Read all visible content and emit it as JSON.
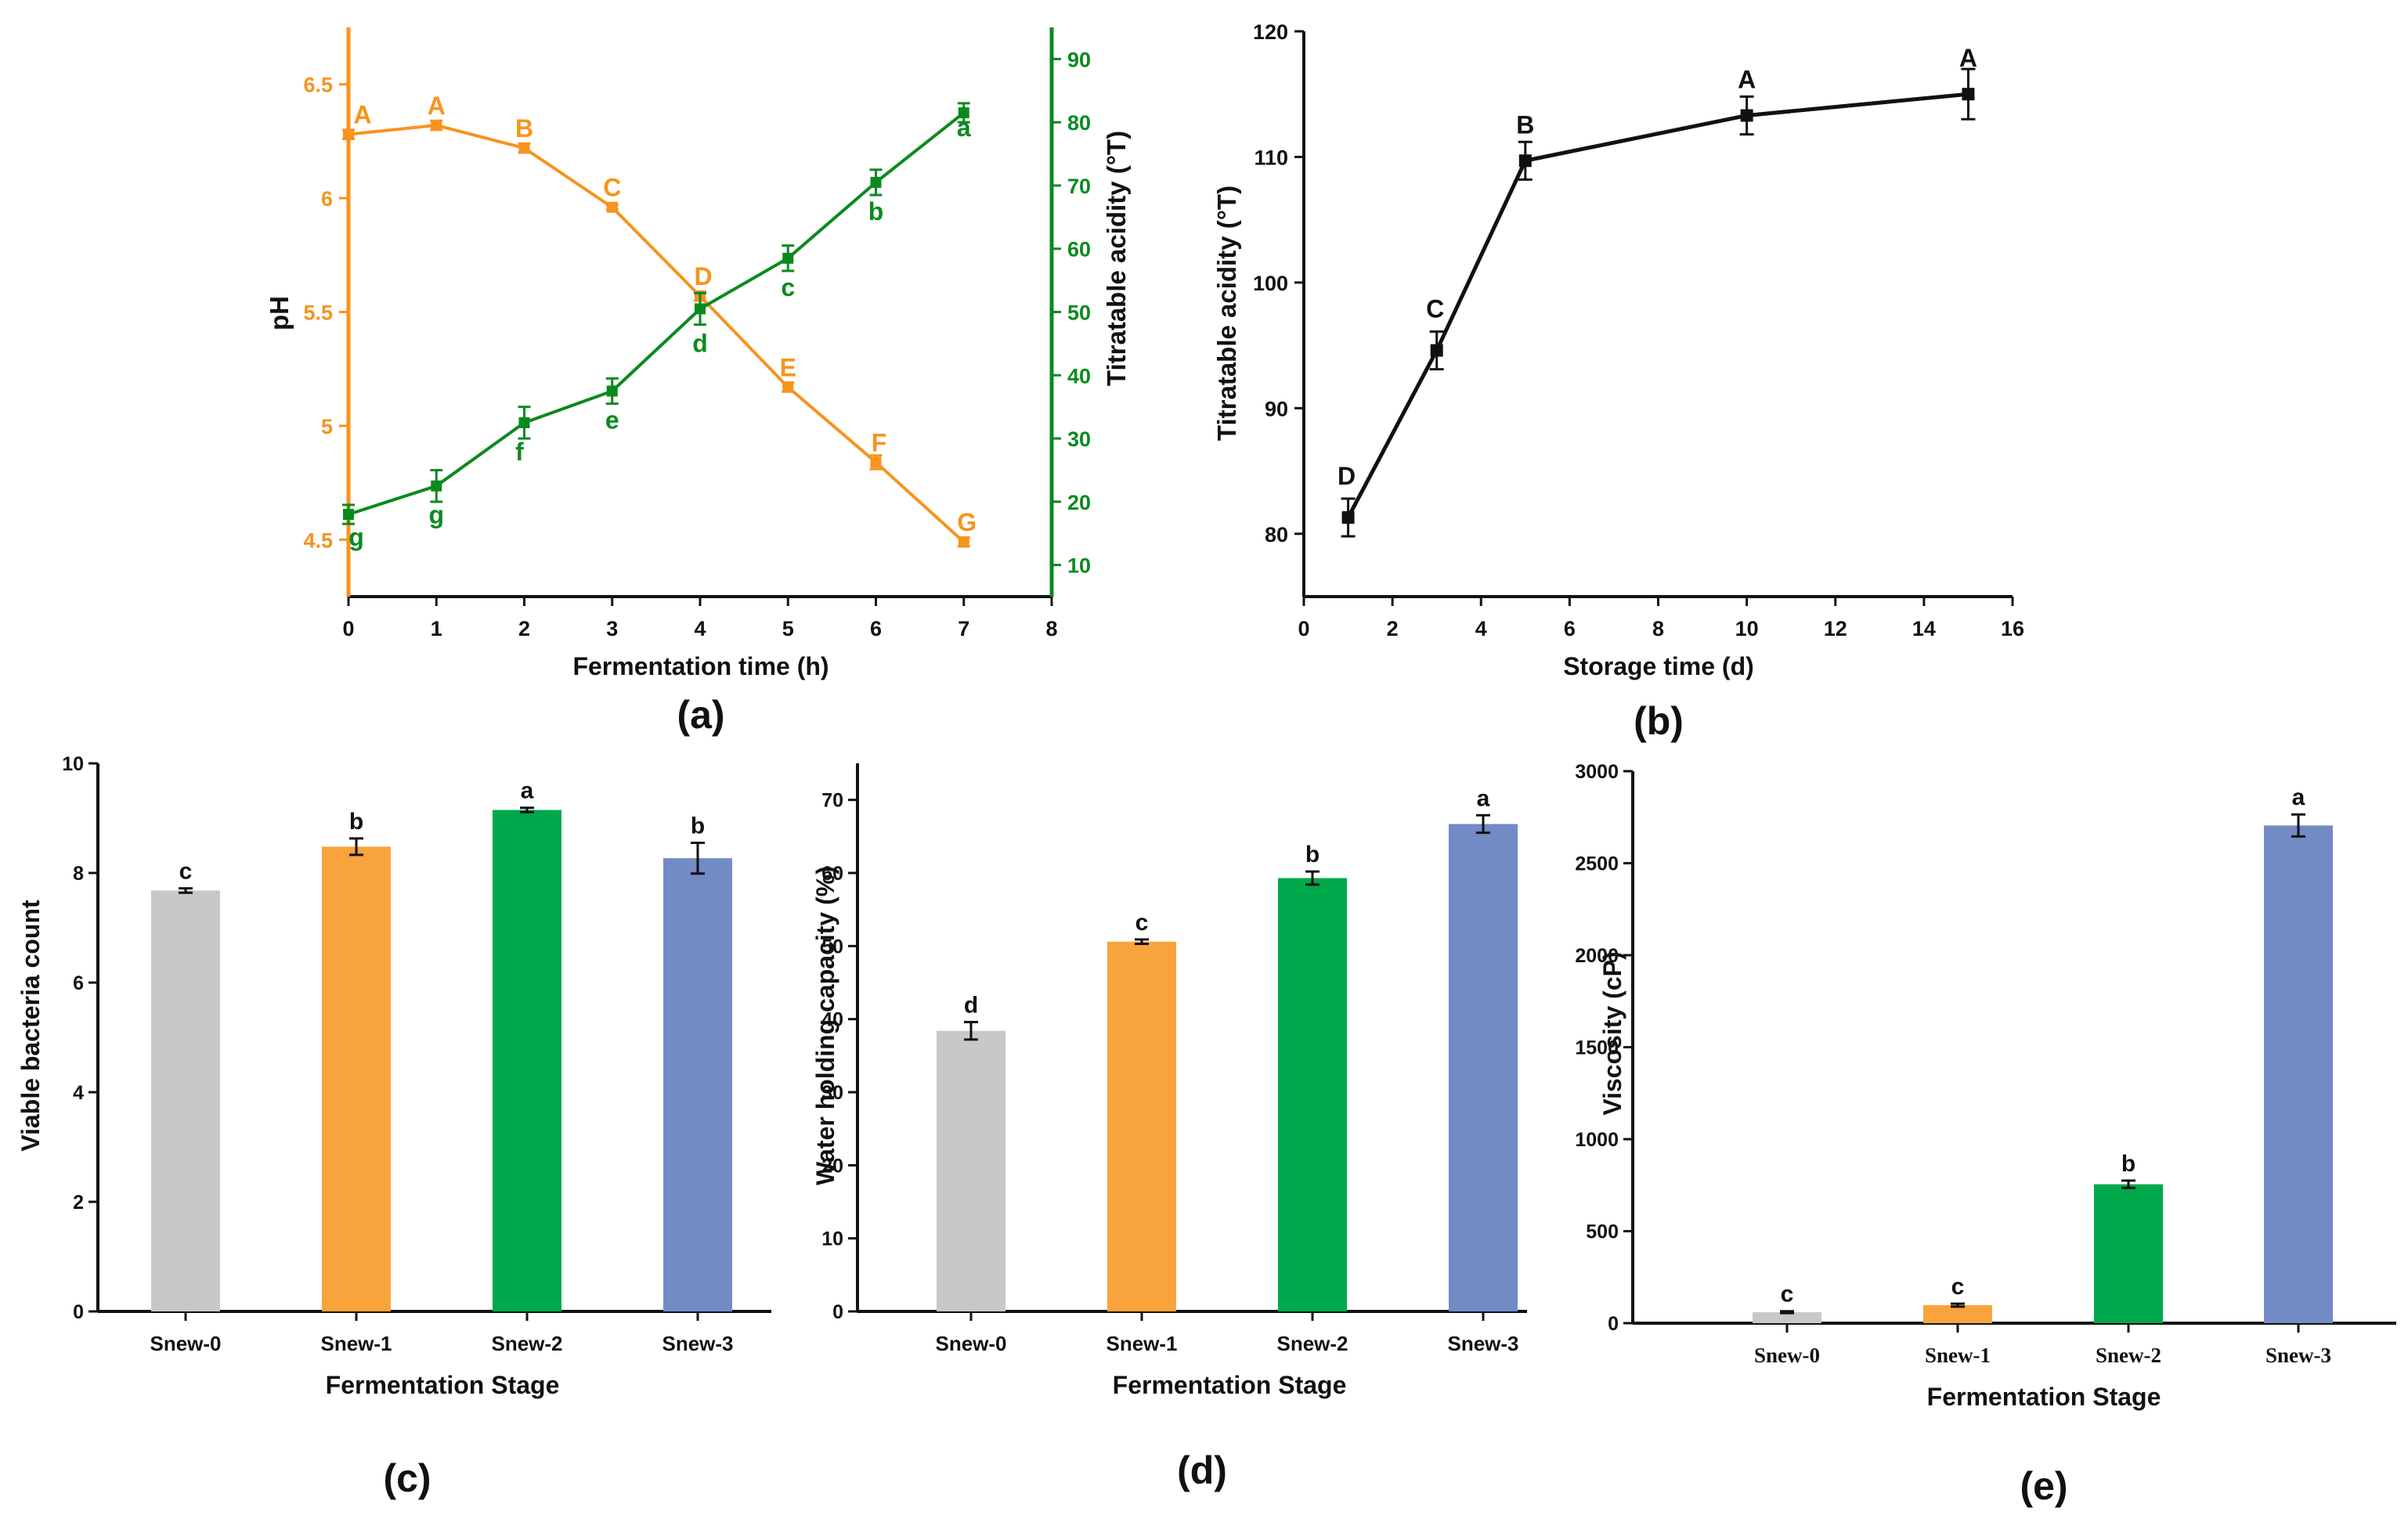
{
  "chart_data": [
    {
      "id": "a",
      "type": "line",
      "panel_label": "(a)",
      "xlabel": "Fermentation time (h)",
      "x_ticks": [
        0,
        1,
        2,
        3,
        4,
        5,
        6,
        7,
        8
      ],
      "xlim": [
        0,
        8
      ],
      "ylabel": "pH",
      "ylim": [
        4.25,
        6.75
      ],
      "y_ticks": [
        4.5,
        5.0,
        5.5,
        6.0,
        6.5
      ],
      "y2label": "Titratable acidity (°T)",
      "y2lim": [
        5,
        95
      ],
      "y2_ticks": [
        10,
        20,
        30,
        40,
        50,
        60,
        70,
        80,
        90
      ],
      "series": [
        {
          "axis": "left",
          "color": "#F7931E",
          "x": [
            0,
            1,
            2,
            3,
            4,
            5,
            6,
            7
          ],
          "values": [
            6.28,
            6.32,
            6.22,
            5.96,
            5.57,
            5.17,
            4.84,
            4.49
          ],
          "errors": [
            0.02,
            0.02,
            0.02,
            0.01,
            0.02,
            0.02,
            0.03,
            0.02
          ],
          "labels": [
            "A",
            "A",
            "B",
            "C",
            "D",
            "E",
            "F",
            "G"
          ]
        },
        {
          "axis": "right",
          "color": "#0A8A1E",
          "x": [
            0,
            1,
            2,
            3,
            4,
            5,
            6,
            7
          ],
          "values": [
            18,
            22.5,
            32.5,
            37.5,
            50.5,
            58.5,
            70.5,
            81.5
          ],
          "errors": [
            1.5,
            2.5,
            2.5,
            2.0,
            2.5,
            2.0,
            2.0,
            1.5
          ],
          "labels": [
            "g",
            "g",
            "f",
            "e",
            "d",
            "c",
            "b",
            "a"
          ]
        }
      ]
    },
    {
      "id": "b",
      "type": "line",
      "panel_label": "(b)",
      "xlabel": "Storage time (d)",
      "x_ticks": [
        0,
        2,
        4,
        6,
        8,
        10,
        12,
        14,
        16
      ],
      "xlim": [
        0,
        16
      ],
      "ylabel": "Titratable acidity (°T)",
      "ylim": [
        75,
        120
      ],
      "y_ticks": [
        80,
        90,
        100,
        110,
        120
      ],
      "series": [
        {
          "color": "#111111",
          "x": [
            1,
            3,
            5,
            10,
            15
          ],
          "values": [
            81.3,
            94.6,
            109.7,
            113.3,
            115.0
          ],
          "errors": [
            1.5,
            1.5,
            1.5,
            1.5,
            2.0
          ],
          "labels": [
            "D",
            "C",
            "B",
            "A",
            "A"
          ]
        }
      ]
    },
    {
      "id": "c",
      "type": "bar",
      "panel_label": "(c)",
      "xlabel": "Fermentation Stage",
      "ylabel": "Viable bacteria count",
      "categories": [
        "Snew-0",
        "Snew-1",
        "Snew-2",
        "Snew-3"
      ],
      "ylim": [
        0,
        10
      ],
      "y_ticks": [
        0,
        2,
        4,
        6,
        8,
        10
      ],
      "values": [
        7.68,
        8.48,
        9.15,
        8.27
      ],
      "errors": [
        0.04,
        0.15,
        0.04,
        0.28
      ],
      "labels": [
        "c",
        "b",
        "a",
        "b"
      ],
      "colors": [
        "#C8C8C8",
        "#F9A33C",
        "#00A84C",
        "#728BC5"
      ]
    },
    {
      "id": "d",
      "type": "bar",
      "panel_label": "(d)",
      "xlabel": "Fermentation Stage",
      "ylabel": "Water holding capacity (%)",
      "categories": [
        "Snew-0",
        "Snew-1",
        "Snew-2",
        "Snew-3"
      ],
      "ylim": [
        0,
        75
      ],
      "y_ticks": [
        0,
        10,
        20,
        30,
        40,
        50,
        60,
        70
      ],
      "values": [
        38.4,
        50.6,
        59.3,
        66.7
      ],
      "errors": [
        1.2,
        0.3,
        0.9,
        1.2
      ],
      "labels": [
        "d",
        "c",
        "b",
        "a"
      ],
      "colors": [
        "#C8C8C8",
        "#F9A33C",
        "#00A84C",
        "#728BC5"
      ]
    },
    {
      "id": "e",
      "type": "bar",
      "panel_label": "(e)",
      "xlabel": "Fermentation Stage",
      "ylabel": "Viscosity (cP)",
      "categories": [
        "Snew-0",
        "Snew-1",
        "Snew-2",
        "Snew-3"
      ],
      "ylim": [
        0,
        3000
      ],
      "y_ticks": [
        0,
        500,
        1000,
        1500,
        2000,
        2500,
        3000
      ],
      "values": [
        60,
        98,
        755,
        2705
      ],
      "errors": [
        5,
        8,
        20,
        60
      ],
      "labels": [
        "c",
        "c",
        "b",
        "a"
      ],
      "colors": [
        "#C8C8C8",
        "#F9A33C",
        "#00A84C",
        "#728BC5"
      ]
    }
  ]
}
